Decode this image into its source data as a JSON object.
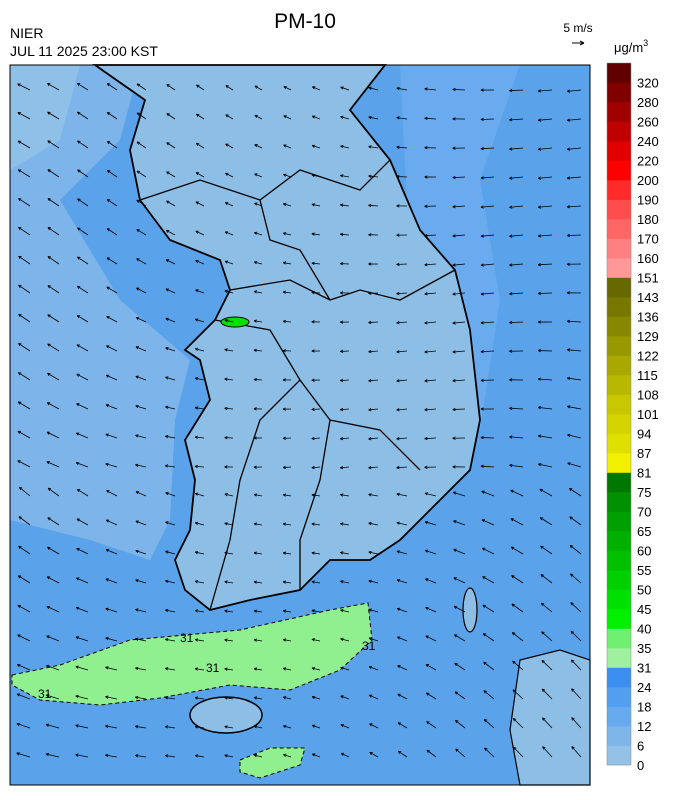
{
  "header": {
    "title": "PM-10",
    "source": "NIER",
    "datetime": "JUL 11 2025 23:00 KST",
    "wind_scale": "5 m/s"
  },
  "map": {
    "contour_labels": [
      "31",
      "31",
      "31",
      "31"
    ]
  },
  "legend": {
    "unit": "μg/m",
    "unit_exponent": "3",
    "levels": [
      "0",
      "6",
      "12",
      "18",
      "24",
      "31",
      "35",
      "40",
      "45",
      "50",
      "55",
      "60",
      "65",
      "70",
      "75",
      "81",
      "87",
      "94",
      "101",
      "108",
      "115",
      "122",
      "129",
      "136",
      "143",
      "151",
      "160",
      "170",
      "180",
      "190",
      "200",
      "220",
      "240",
      "260",
      "280",
      "320"
    ],
    "colors": [
      "#93c2e6",
      "#7eb6ea",
      "#68aaee",
      "#529ef0",
      "#3c8ef0",
      "#a0f0a0",
      "#70f070",
      "#00f000",
      "#00e000",
      "#00d000",
      "#00c000",
      "#00b000",
      "#00a000",
      "#009000",
      "#007800",
      "#f0f000",
      "#e0e000",
      "#d4d400",
      "#c8c800",
      "#b8b800",
      "#a8a800",
      "#989800",
      "#888800",
      "#787800",
      "#686800",
      "#ff9999",
      "#ff8080",
      "#ff6666",
      "#ff4d4d",
      "#ff2a2a",
      "#ff0000",
      "#e00000",
      "#c00000",
      "#a00000",
      "#800000",
      "#600000"
    ]
  }
}
